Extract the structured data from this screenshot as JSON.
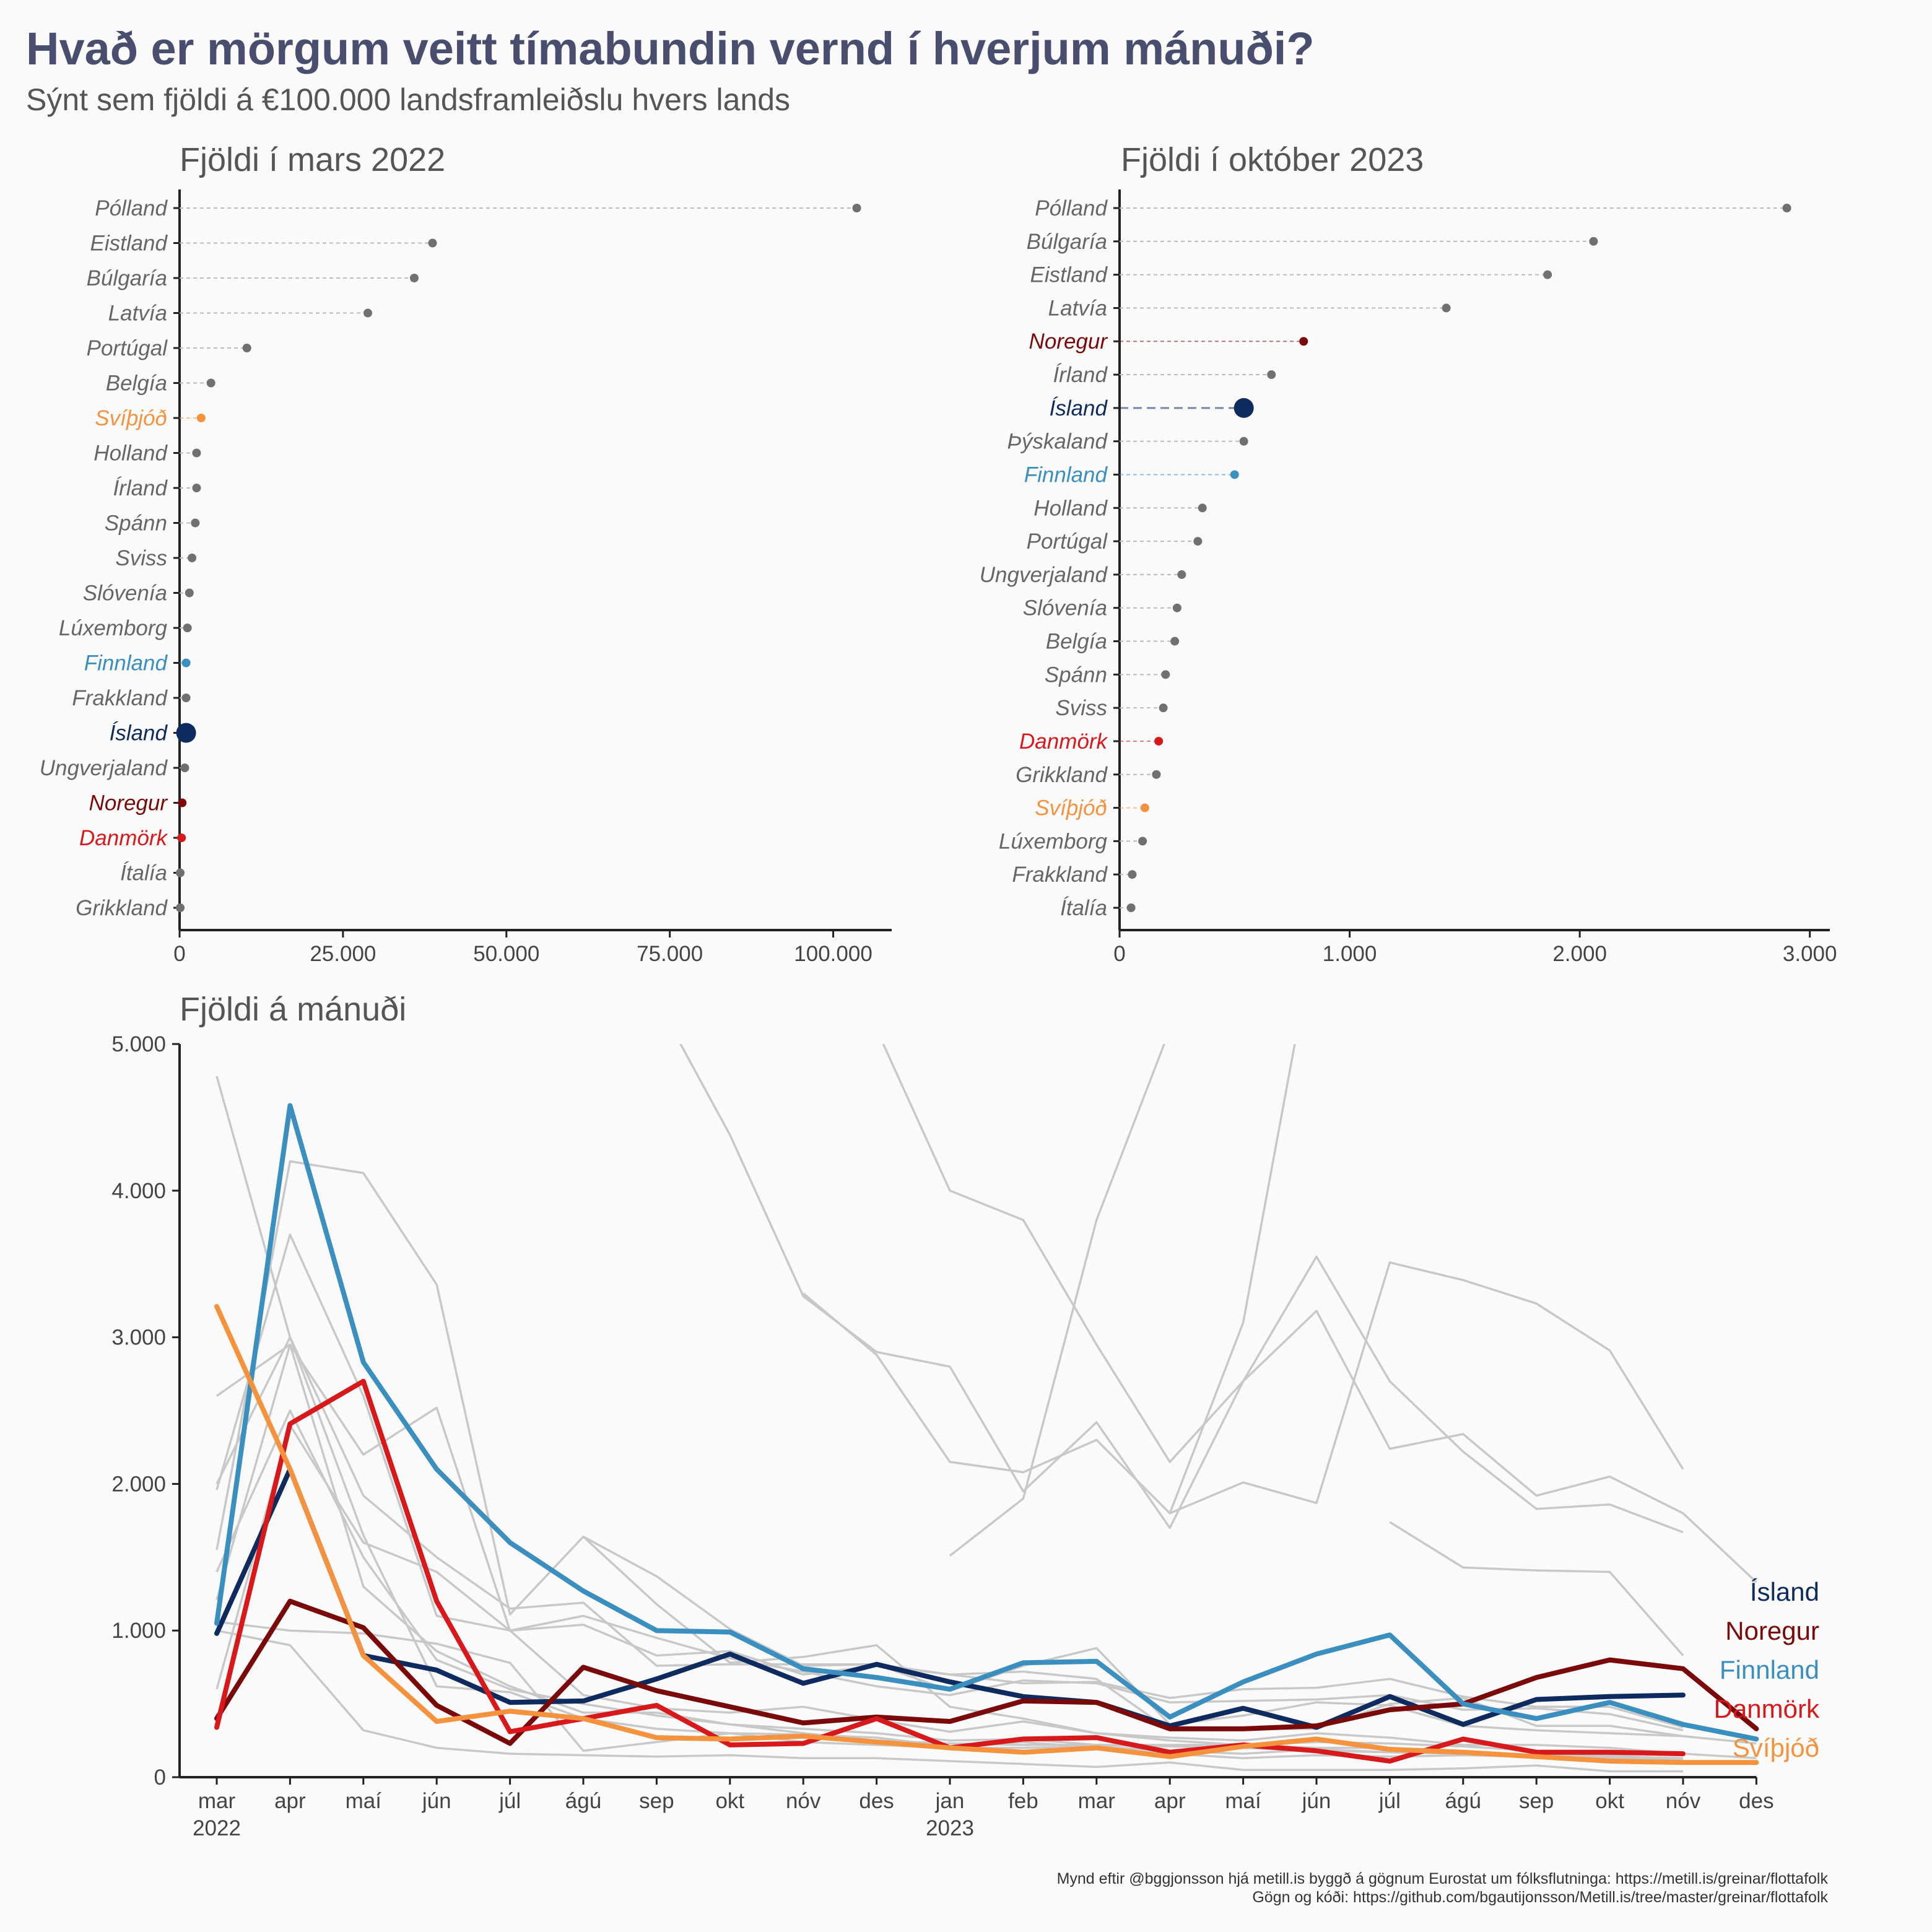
{
  "title": "Hvað er mörgum veitt tímabundin vernd í hverjum mánuði?",
  "subtitle": "Sýnt sem fjöldi á €100.000 landsframleiðslu hvers lands",
  "colors": {
    "Ísland": "#0d2b5e",
    "Noregur": "#7a0a0a",
    "Finnland": "#3a8fbf",
    "Danmörk": "#d7191c",
    "Svíþjóð": "#f5923e",
    "other": "#707070",
    "background_lines": "#c8c8c8"
  },
  "chart_data": [
    {
      "type": "dot",
      "title": "Fjöldi í mars 2022",
      "xlim": [
        0,
        108000
      ],
      "xticks": [
        0,
        25000,
        50000,
        75000,
        100000
      ],
      "xtick_labels": [
        "0",
        "25.000",
        "50.000",
        "75.000",
        "100.000"
      ],
      "categories": [
        "Pólland",
        "Eistland",
        "Búlgaría",
        "Latvía",
        "Portúgal",
        "Belgía",
        "Svíþjóð",
        "Holland",
        "Írland",
        "Spánn",
        "Sviss",
        "Slóvenía",
        "Lúxemborg",
        "Finnland",
        "Frakkland",
        "Ísland",
        "Ungverjaland",
        "Noregur",
        "Danmörk",
        "Ítalía",
        "Grikkland"
      ],
      "values": [
        103600,
        38700,
        35900,
        28800,
        10300,
        4800,
        3300,
        2600,
        2600,
        2400,
        1900,
        1500,
        1200,
        1000,
        1000,
        1000,
        800,
        400,
        300,
        100,
        100
      ]
    },
    {
      "type": "dot",
      "title": "Fjöldi í október 2023",
      "xlim": [
        0,
        3060
      ],
      "xticks": [
        0,
        1000,
        2000,
        3000
      ],
      "xtick_labels": [
        "0",
        "1.000",
        "2.000",
        "3.000"
      ],
      "categories": [
        "Pólland",
        "Búlgaría",
        "Eistland",
        "Latvía",
        "Noregur",
        "Írland",
        "Ísland",
        "Þýskaland",
        "Finnland",
        "Holland",
        "Portúgal",
        "Ungverjaland",
        "Slóvenía",
        "Belgía",
        "Spánn",
        "Sviss",
        "Danmörk",
        "Grikkland",
        "Svíþjóð",
        "Lúxemborg",
        "Frakkland",
        "Ítalía"
      ],
      "values": [
        2900,
        2060,
        1860,
        1420,
        800,
        660,
        540,
        540,
        500,
        360,
        340,
        270,
        250,
        240,
        200,
        190,
        170,
        160,
        110,
        100,
        55,
        50
      ]
    },
    {
      "type": "line",
      "title": "Fjöldi á mánuði",
      "ylim": [
        0,
        5000
      ],
      "yticks": [
        0,
        1000,
        2000,
        3000,
        4000,
        5000
      ],
      "ytick_labels": [
        "0",
        "1.000",
        "2.000",
        "3.000",
        "4.000",
        "5.000"
      ],
      "x": [
        "mar",
        "apr",
        "maí",
        "jún",
        "júl",
        "ágú",
        "sep",
        "okt",
        "nóv",
        "des",
        "jan",
        "feb",
        "mar",
        "apr",
        "maí",
        "jún",
        "júl",
        "ágú",
        "sep",
        "okt",
        "nóv",
        "des"
      ],
      "year_labels": [
        {
          "index": 0,
          "label": "2022"
        },
        {
          "index": 10,
          "label": "2023"
        }
      ],
      "series": [
        {
          "name": "Ísland",
          "values": [
            980,
            2100,
            830,
            730,
            510,
            520,
            670,
            840,
            640,
            770,
            650,
            550,
            510,
            350,
            470,
            340,
            550,
            360,
            530,
            550,
            560,
            null
          ]
        },
        {
          "name": "Noregur",
          "values": [
            400,
            1200,
            1020,
            490,
            230,
            750,
            590,
            480,
            370,
            410,
            380,
            520,
            510,
            330,
            330,
            350,
            460,
            500,
            680,
            800,
            740,
            330
          ]
        },
        {
          "name": "Finnland",
          "values": [
            1050,
            4580,
            2830,
            2100,
            1600,
            1270,
            1000,
            990,
            740,
            680,
            600,
            780,
            790,
            410,
            650,
            840,
            970,
            500,
            400,
            510,
            360,
            260
          ]
        },
        {
          "name": "Danmörk",
          "values": [
            340,
            2410,
            2700,
            1200,
            310,
            400,
            490,
            220,
            230,
            400,
            200,
            260,
            270,
            170,
            220,
            180,
            110,
            260,
            170,
            170,
            160,
            null
          ]
        },
        {
          "name": "Svíþjóð",
          "values": [
            3210,
            2100,
            830,
            380,
            450,
            400,
            270,
            260,
            280,
            240,
            200,
            170,
            200,
            140,
            210,
            260,
            190,
            170,
            140,
            110,
            100,
            100
          ]
        }
      ],
      "background_series": [
        {
          "values": [
            null,
            null,
            null,
            null,
            null,
            null,
            5300,
            4380,
            3280,
            2900,
            2800,
            1950,
            2420,
            1700,
            2700,
            3180,
            2240,
            2340,
            1920,
            2050,
            1800,
            1330
          ]
        },
        {
          "values": [
            4780,
            3000,
            1920,
            1500,
            1150,
            1190,
            760,
            770,
            770,
            770,
            700,
            720,
            670,
            320,
            330,
            330,
            500,
            540,
            350,
            350,
            280,
            null
          ]
        },
        {
          "values": [
            1550,
            4200,
            4120,
            3360,
            1110,
            1640,
            1370,
            1010,
            760,
            770,
            590,
            760,
            880,
            360,
            420,
            510,
            490,
            350,
            320,
            300,
            280,
            230
          ]
        },
        {
          "values": [
            2600,
            2950,
            2200,
            2520,
            1000,
            1040,
            830,
            860,
            700,
            760,
            700,
            640,
            650,
            540,
            600,
            610,
            670,
            550,
            480,
            480,
            340,
            null
          ]
        },
        {
          "values": [
            1960,
            3700,
            2600,
            1100,
            1000,
            1100,
            950,
            810,
            720,
            620,
            560,
            660,
            640,
            510,
            520,
            530,
            560,
            460,
            470,
            430,
            320,
            null
          ]
        },
        {
          "values": [
            1000,
            900,
            320,
            200,
            160,
            150,
            140,
            150,
            130,
            130,
            110,
            90,
            70,
            100,
            50,
            50,
            50,
            60,
            80,
            40,
            40,
            null
          ]
        },
        {
          "values": [
            600,
            2400,
            1600,
            1400,
            1000,
            560,
            470,
            440,
            480,
            390,
            310,
            380,
            300,
            270,
            250,
            300,
            270,
            220,
            220,
            200,
            160,
            null
          ]
        },
        {
          "values": [
            1210,
            2950,
            1300,
            860,
            620,
            440,
            440,
            360,
            330,
            300,
            250,
            260,
            220,
            220,
            220,
            200,
            200,
            170,
            150,
            140,
            130,
            null
          ]
        },
        {
          "values": [
            2000,
            3000,
            1650,
            620,
            580,
            400,
            330,
            300,
            290,
            270,
            210,
            240,
            200,
            160,
            130,
            150,
            140,
            150,
            140,
            130,
            120,
            null
          ]
        },
        {
          "values": [
            1060,
            1000,
            980,
            910,
            780,
            180,
            240,
            300,
            240,
            220,
            200,
            200,
            210,
            180,
            160,
            190,
            170,
            160,
            150,
            150,
            120,
            null
          ]
        },
        {
          "values": [
            1400,
            2500,
            1500,
            800,
            600,
            500,
            420,
            360,
            300,
            250,
            230,
            220,
            220,
            210,
            200,
            180,
            170,
            160,
            150,
            140,
            130,
            null
          ]
        },
        {
          "values": [
            null,
            null,
            null,
            null,
            null,
            null,
            null,
            null,
            7000,
            5100,
            4000,
            3800,
            2950,
            2150,
            2700,
            3550,
            2700,
            2220,
            1830,
            1860,
            1670,
            null
          ]
        },
        {
          "values": [
            null,
            null,
            null,
            null,
            null,
            null,
            null,
            null,
            null,
            null,
            1510,
            1900,
            3800,
            5100,
            null,
            null,
            null,
            null,
            null,
            null,
            null,
            null
          ]
        },
        {
          "values": [
            null,
            null,
            null,
            null,
            null,
            null,
            null,
            null,
            null,
            null,
            null,
            null,
            null,
            1800,
            2010,
            1870,
            3510,
            3390,
            3230,
            2910,
            2100,
            null
          ]
        },
        {
          "values": [
            null,
            null,
            null,
            null,
            null,
            null,
            null,
            null,
            null,
            null,
            null,
            null,
            null,
            null,
            null,
            null,
            1740,
            1430,
            1410,
            1400,
            830,
            null
          ]
        },
        {
          "values": [
            null,
            null,
            null,
            null,
            null,
            null,
            null,
            null,
            3300,
            2880,
            2150,
            2080,
            2300,
            1800,
            3100,
            5800,
            null,
            null,
            null,
            null,
            null,
            null
          ]
        },
        {
          "values": [
            null,
            null,
            null,
            null,
            null,
            1640,
            1180,
            780,
            820,
            900,
            480,
            400,
            300,
            250,
            220,
            240,
            230,
            210,
            180,
            180,
            160,
            130
          ]
        }
      ]
    }
  ],
  "credit_line1": "Mynd eftir @bggjonsson hjá metill.is byggð á gögnum Eurostat um fólksflutninga: https://metill.is/greinar/flottafolk",
  "credit_line2": "Gögn og kóði: https://github.com/bgautijonsson/Metill.is/tree/master/greinar/flottafolk"
}
